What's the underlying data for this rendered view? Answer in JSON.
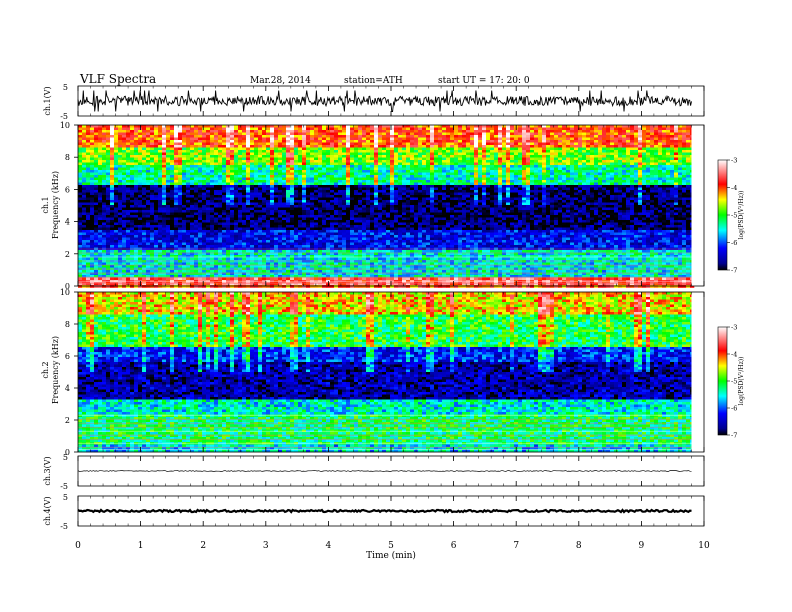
{
  "header": {
    "title": "VLF  Spectra",
    "date": "Mar.28, 2014",
    "station": "station=ATH",
    "start": "start  UT  =    17: 20: 0"
  },
  "chart_data": [
    {
      "type": "line",
      "panel": "ch1-waveform",
      "ylabel": "ch.1(V)",
      "ylim": [
        -5,
        5
      ],
      "yticks": [
        "5",
        "-5"
      ],
      "baseline": 0,
      "noise_amplitude": 1.6,
      "spike_amplitude": 3.5
    },
    {
      "type": "heatmap",
      "panel": "ch1-spectrogram",
      "ylabel_channel": "ch.1",
      "ylabel": "Frequency  (kHz)",
      "ylim": [
        0,
        10
      ],
      "yticks": [
        "0",
        "2",
        "4",
        "6",
        "8",
        "10"
      ],
      "bands_khz": [
        {
          "from": 0,
          "to": 0.5,
          "logpsd": -3.6
        },
        {
          "from": 0.5,
          "to": 2.3,
          "logpsd": -5.5
        },
        {
          "from": 2.3,
          "to": 3.5,
          "logpsd": -6.3
        },
        {
          "from": 3.5,
          "to": 6.3,
          "logpsd": -6.8
        },
        {
          "from": 6.3,
          "to": 7.5,
          "logpsd": -5.4
        },
        {
          "from": 7.5,
          "to": 8.6,
          "logpsd": -4.8
        },
        {
          "from": 8.6,
          "to": 10,
          "logpsd": -4.0
        }
      ],
      "colorbar": {
        "label": "log(PSD(V²/Hz))",
        "range": [
          -7,
          -3
        ],
        "ticks": [
          "-3",
          "-4",
          "-5",
          "-6",
          "-7"
        ]
      }
    },
    {
      "type": "heatmap",
      "panel": "ch2-spectrogram",
      "ylabel_channel": "ch.2",
      "ylabel": "Frequency  (kHz)",
      "ylim": [
        0,
        10
      ],
      "yticks": [
        "0",
        "2",
        "4",
        "6",
        "8",
        "10"
      ],
      "bands_khz": [
        {
          "from": 0,
          "to": 0.5,
          "logpsd": -5.6
        },
        {
          "from": 0.5,
          "to": 2.4,
          "logpsd": -5.2
        },
        {
          "from": 2.4,
          "to": 3.3,
          "logpsd": -5.5
        },
        {
          "from": 3.3,
          "to": 5.6,
          "logpsd": -6.6
        },
        {
          "from": 5.6,
          "to": 6.6,
          "logpsd": -6.2
        },
        {
          "from": 6.6,
          "to": 8.6,
          "logpsd": -5.1
        },
        {
          "from": 8.6,
          "to": 10,
          "logpsd": -4.4
        }
      ],
      "colorbar": {
        "label": "log(PSD(V²/Hz))",
        "range": [
          -7,
          -3
        ],
        "ticks": [
          "-3",
          "-4",
          "-5",
          "-6",
          "-7"
        ]
      }
    },
    {
      "type": "line",
      "panel": "ch3-waveform",
      "ylabel": "ch.3(V)",
      "ylim": [
        -5,
        5
      ],
      "yticks": [
        "5",
        "-5"
      ],
      "baseline": 0,
      "noise_amplitude": 0.15
    },
    {
      "type": "line",
      "panel": "ch4-waveform",
      "ylabel": "ch.4(V)",
      "ylim": [
        -5,
        5
      ],
      "yticks": [
        "5",
        "-5"
      ],
      "baseline": 0,
      "noise_amplitude": 0.35
    }
  ],
  "xaxis": {
    "label": "Time  (min)",
    "range": [
      0,
      10
    ],
    "data_end": 9.8,
    "ticks": [
      "0",
      "1",
      "2",
      "3",
      "4",
      "5",
      "6",
      "7",
      "8",
      "9",
      "10"
    ]
  }
}
